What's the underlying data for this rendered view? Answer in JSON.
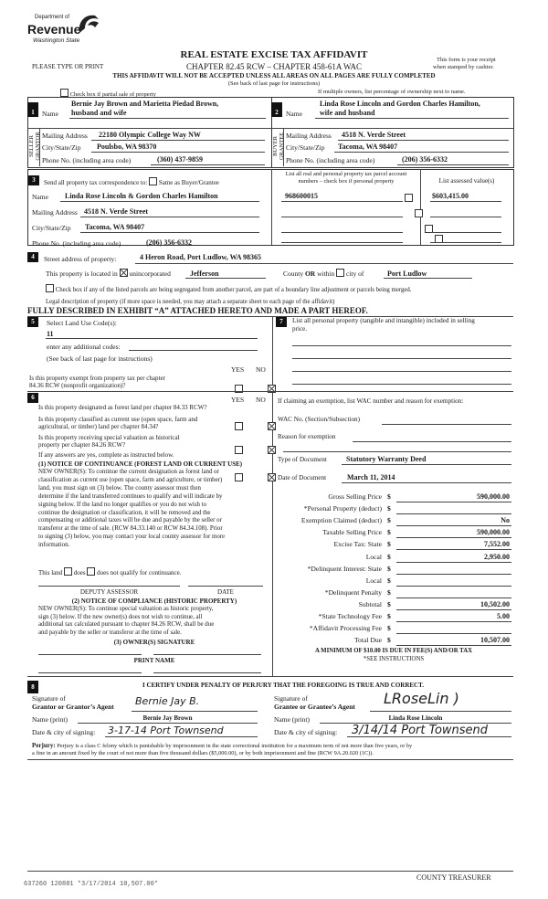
{
  "header": {
    "agency_line1": "Department of",
    "agency_line2": "Revenue",
    "agency_line3": "Washington State",
    "title": "REAL ESTATE EXCISE TAX AFFIDAVIT",
    "chapter": "CHAPTER 82.45 RCW – CHAPTER 458-61A WAC",
    "please_type": "PLEASE TYPE OR PRINT",
    "receipt_line1": "This form is your receipt",
    "receipt_line2": "when stamped by cashier.",
    "warning": "THIS AFFIDAVIT WILL NOT BE ACCEPTED UNLESS ALL AREAS ON ALL PAGES ARE FULLY COMPLETED",
    "instructions": "(See back of last page for instructions)",
    "partial_sale_label": "Check box if partial sale of property",
    "partial_sale_checked": false,
    "multiple_owners_note": "If multiple owners, list percentage of ownership next to name."
  },
  "seller": {
    "number": "1",
    "side_label": "SELLER GRANTOR",
    "name_label": "Name",
    "name_line1": "Bernie Jay Brown and Marietta Piedad Brown,",
    "name_line2": "husband and wife",
    "address_label": "Mailing Address",
    "address": "22180 Olympic College Way NW",
    "city_label": "City/State/Zip",
    "city": "Poulsbo, WA 98370",
    "phone_label": "Phone No. (including area code)",
    "phone": "(360) 437-9859"
  },
  "buyer": {
    "number": "2",
    "side_label": "BUYER GRANTEE",
    "name_label": "Name",
    "name_line1": "Linda Rose Lincoln and Gordon Charles Hamilton,",
    "name_line2": "wife and husband",
    "address_label": "Mailing Address",
    "address": "4518 N. Verde Street",
    "city_label": "City/State/Zip",
    "city": "Tacoma, WA 98407",
    "phone_label": "Phone No. (including area code)",
    "phone": "(206) 356-6332"
  },
  "correspondence": {
    "number": "3",
    "label": "Send all property tax correspondence to:",
    "same_label": "Same as Buyer/Grantee",
    "same_checked": false,
    "name_label": "Name",
    "name": "Linda Rose Lincoln & Gordon Charles Hamilton",
    "address_label": "Mailing Address",
    "address": "4518 N. Verde Street",
    "city_label": "City/State/Zip",
    "city": "Tacoma, WA 98407",
    "phone_label": "Phone No. (including area code)",
    "phone": "(206) 356-6332",
    "parcel_header_line1": "List all real and personal property tax parcel account",
    "parcel_header_line2": "numbers – check box if personal property",
    "assessed_header": "List assessed value(s)",
    "parcels": [
      {
        "number": "968600015",
        "personal": false,
        "assessed": "$603,415.00"
      },
      {
        "number": "",
        "personal": false,
        "assessed": ""
      },
      {
        "number": "",
        "personal": false,
        "assessed": ""
      },
      {
        "number": "",
        "personal": false,
        "assessed": ""
      }
    ]
  },
  "property": {
    "number": "4",
    "street_label": "Street address of property:",
    "street": "4 Heron Road, Port Ludlow, WA  98365",
    "located_label": "This property is located in",
    "unincorporated_label": "unincorporated",
    "unincorporated_checked": true,
    "county": "Jefferson",
    "county_or_label": "County",
    "or_label": "OR",
    "within_label": "within",
    "city_checked": false,
    "city_of_label": "city of",
    "city": "Port Ludlow",
    "segregated_label": "Check box if any of the listed parcels are being segregated from another parcel, are part of a boundary line adjustment or parcels being merged.",
    "segregated_checked": false,
    "legal_label": "Legal description of property (if more space is needed, you may attach a separate sheet to each page of the affidavit)",
    "legal_description": "FULLY DESCRIBED IN EXHIBIT “A” ATTACHED HERETO AND MADE A PART HEREOF."
  },
  "land_use": {
    "number": "5",
    "label": "Select Land Use Code(s):",
    "code": "11",
    "additional_label": "enter any additional codes:",
    "additional": "",
    "instructions": "(See back of last page for instructions)",
    "yes_label": "YES",
    "no_label": "NO",
    "exempt_question_line1": "Is this property exempt from property tax per chapter",
    "exempt_question_line2": "84.36 RCW (nonprofit organization)?",
    "exempt_answer": "NO"
  },
  "section6": {
    "number": "6",
    "yes_label": "YES",
    "no_label": "NO",
    "questions": [
      {
        "line1": "Is this property designated as forest land per chapter 84.33 RCW?",
        "line2": "",
        "answer": "NO"
      },
      {
        "line1": "Is this property classified as current use (open space, farm and",
        "line2": "agricultural, or timber) land per chapter 84.34?",
        "answer": "NO"
      },
      {
        "line1": "Is this property receiving special valuation as historical",
        "line2": "property per chapter 84.26 RCW?",
        "answer": "NO"
      }
    ],
    "if_yes": "If any answers are yes, complete as instructed below.",
    "notice1_title": "(1) NOTICE OF CONTINUANCE (FOREST LAND OR CURRENT USE)",
    "notice1_lines": [
      "NEW OWNER(S): To continue the current designation as forest land or",
      "classification as current use (open space, farm and agriculture, or timber)",
      "land, you must sign on (3) below.  The county assessor must then",
      "determine if the land transferred continues to qualify and will indicate by",
      "signing below.  If the land no longer qualifies or you do not wish to",
      "continue the designation or classification, it will be removed and the",
      "compensating or additional taxes will be due and payable by the seller or",
      "transferor at the time of sale.  (RCW 84.33.140 or RCW 84.34.108). Prior",
      "to signing (3) below, you may contact your local county assessor for more",
      "information."
    ],
    "this_land_label": "This land",
    "does_label": "does",
    "does_not_label": "does not qualify for continuance.",
    "deputy_label": "DEPUTY ASSESSOR",
    "date_label": "DATE",
    "notice2_title": "(2) NOTICE OF COMPLIANCE (HISTORIC PROPERTY)",
    "notice2_lines": [
      "NEW OWNER(S):  To continue special valuation as historic property,",
      "sign (3) below.  If the new owner(s) does not wish to continue, all",
      "additional tax calculated pursuant to chapter 84.26 RCW, shall be due",
      "and payable by the seller or transferor at the time of sale."
    ],
    "owner_sig_label": "(3)  OWNER(S) SIGNATURE",
    "print_name_label": "PRINT NAME"
  },
  "section7": {
    "number": "7",
    "label_line1": "List all personal property (tangible and intangible) included in selling",
    "label_line2": "price.",
    "exemption_label": "If claiming an exemption, list WAC number and reason for exemption:",
    "wac_label": "WAC No. (Section/Subsection)",
    "reason_label": "Reason for exemption",
    "doc_type_label": "Type of Document",
    "doc_type": "Statutory Warranty Deed",
    "doc_date_label": "Date of Document",
    "doc_date": "March 11, 2014",
    "currency": "$",
    "amounts": [
      {
        "label": "Gross Selling Price",
        "value": "590,000.00"
      },
      {
        "label": "*Personal Property (deduct)",
        "value": ""
      },
      {
        "label": "Exemption Claimed (deduct)",
        "value": "No"
      },
      {
        "label": "Taxable Selling Price",
        "value": "590,000.00"
      },
      {
        "label": "Excise Tax:  State",
        "value": "7,552.00"
      },
      {
        "label": "Local",
        "value": "2,950.00"
      },
      {
        "label": "*Delinquent Interest:  State",
        "value": ""
      },
      {
        "label": "Local",
        "value": ""
      },
      {
        "label": "*Delinquent Penalty",
        "value": ""
      },
      {
        "label": "Subtotal",
        "value": "10,502.00"
      },
      {
        "label": "*State Technology Fee",
        "value": "5.00"
      },
      {
        "label": "*Affidavit Processing Fee",
        "value": ""
      },
      {
        "label": "Total Due",
        "value": "10,507.00"
      }
    ],
    "minimum_note": "A MINIMUM OF $10.00 IS DUE IN FEE(S) AND/OR TAX",
    "see_instructions": "*SEE INSTRUCTIONS"
  },
  "section8": {
    "number": "8",
    "certify": "I CERTIFY UNDER PENALTY OF PERJURY THAT THE FOREGOING IS TRUE AND CORRECT.",
    "sig_of_label": "Signature of",
    "grantor_label": "Grantor or Grantor’s Agent",
    "grantee_label": "Grantee or Grantee’s Agent",
    "name_print_label": "Name (print)",
    "date_city_label": "Date & city of signing:",
    "grantor_name": "Bernie Jay Brown",
    "grantee_name": "Linda Rose Lincoln",
    "grantor_date_city": "3-17-14  Port Townsend",
    "grantee_date_city": "3/14/14  Port Townsend",
    "perjury_label": "Perjury:",
    "perjury_line1": "Perjury is a class C felony which is punishable by imprisonment in the state correctional institution for a maximum term of not more than five years, or by",
    "perjury_line2": "a fine in an amount fixed by the court of not more than five thousand dollars ($5,000.00), or by both imprisonment and fine (RCW 9A.20.020 (1C))."
  },
  "footer": {
    "treasurer_label": "COUNTY TREASURER",
    "stamp": "637260 120881 *3/17/2014 10,507.00*"
  }
}
